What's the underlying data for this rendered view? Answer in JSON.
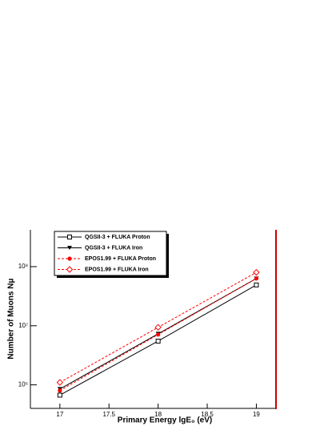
{
  "chart_data": {
    "type": "line",
    "y_scale": "log",
    "x_label": "Primary Energy lgE₀ (eV)",
    "y_label": "Number of Muons Nμ",
    "x": [
      17,
      18,
      19
    ],
    "series": [
      {
        "name": "QGSII-3 + FLUKA Proton",
        "color": "#000000",
        "line_style": "solid",
        "marker": "square-open",
        "values": [
          670000,
          5500000,
          49000000
        ]
      },
      {
        "name": "QGSII-3 + FLUKA Iron",
        "color": "#000000",
        "line_style": "solid",
        "marker": "triangle-down",
        "values": [
          850000,
          7300000,
          63000000
        ]
      },
      {
        "name": "EPOS1.99 + FLUKA Proton",
        "color": "#ff0000",
        "line_style": "dashed",
        "marker": "circle",
        "values": [
          800000,
          7100000,
          63000000
        ]
      },
      {
        "name": "EPOS1.99 + FLUKA Iron",
        "color": "#ff0000",
        "line_style": "dashed",
        "marker": "diamond-open",
        "values": [
          1100000,
          9400000,
          80000000
        ]
      }
    ],
    "xlim": [
      16.7,
      19.2
    ],
    "xticks": [
      17,
      17.5,
      18,
      18.5,
      19
    ],
    "ylim": [
      400000,
      420000000
    ],
    "yticks": [
      {
        "value": 1000000,
        "label": "10⁶"
      },
      {
        "value": 10000000,
        "label": "10⁷"
      },
      {
        "value": 100000000,
        "label": "10⁸"
      }
    ],
    "legend": "upper left"
  }
}
